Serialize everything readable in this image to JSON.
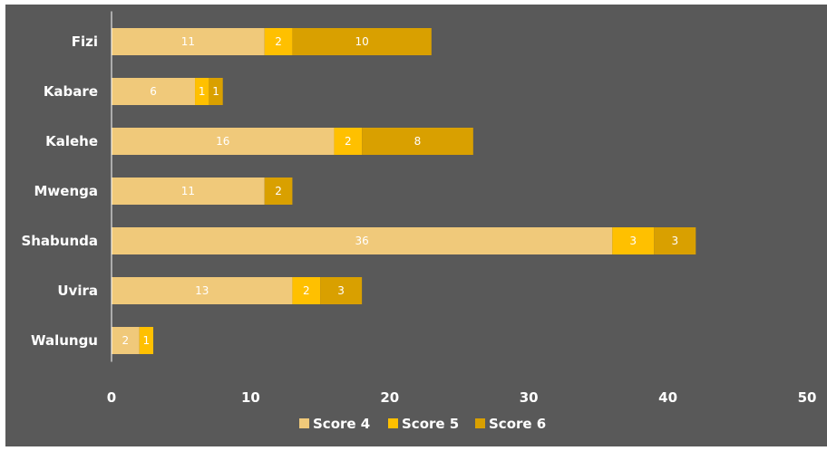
{
  "chart_data": {
    "type": "bar",
    "orientation": "horizontal",
    "stacked": true,
    "categories": [
      "Fizi",
      "Kabare",
      "Kalehe",
      "Mwenga",
      "Shabunda",
      "Uvira",
      "Walungu"
    ],
    "series": [
      {
        "name": "Score 4",
        "values": [
          11,
          6,
          16,
          11,
          36,
          13,
          2
        ],
        "color": "#F0C97A"
      },
      {
        "name": "Score 5",
        "values": [
          2,
          1,
          2,
          0,
          3,
          2,
          1
        ],
        "color": "#FFC000"
      },
      {
        "name": "Score 6",
        "values": [
          10,
          1,
          8,
          2,
          3,
          3,
          0
        ],
        "color": "#D9A000"
      }
    ],
    "xlim": [
      0,
      50
    ],
    "xticks": [
      0,
      10,
      20,
      30,
      40,
      50
    ],
    "grid": false,
    "legend_position": "bottom",
    "background_color": "#595959"
  }
}
